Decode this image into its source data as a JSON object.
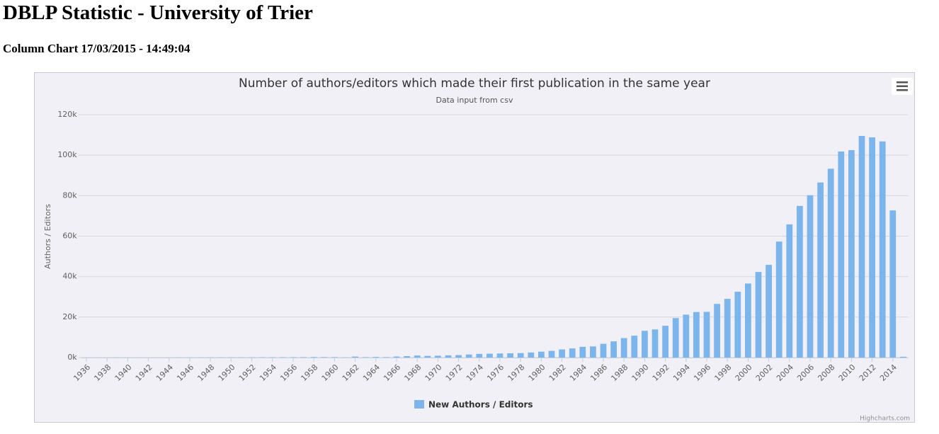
{
  "header": {
    "title": "DBLP Statistic - University of Trier",
    "subtitle": "Column Chart 17/03/2015 - 14:49:04"
  },
  "chart_data": {
    "type": "bar",
    "title": "Number of authors/editors which made their first publication in the same year",
    "subtitle": "Data input from csv",
    "y_label": "Authors / Editors",
    "credits": "Highcharts.com",
    "categories": [
      1936,
      null,
      1938,
      null,
      1940,
      null,
      1942,
      null,
      1944,
      null,
      1946,
      null,
      1948,
      null,
      1950,
      null,
      1952,
      null,
      1954,
      null,
      1956,
      null,
      1958,
      null,
      1960,
      null,
      1962,
      null,
      1964,
      null,
      1966,
      null,
      1968,
      null,
      1970,
      null,
      1972,
      null,
      1974,
      null,
      1976,
      null,
      1978,
      null,
      1980,
      null,
      1982,
      null,
      1984,
      null,
      1986,
      null,
      1988,
      null,
      1990,
      null,
      1992,
      null,
      1994,
      null,
      1996,
      null,
      1998,
      null,
      2000,
      null,
      2002,
      null,
      2004,
      null,
      2006,
      null,
      2008,
      null,
      2010,
      null,
      2012,
      null,
      2014,
      null
    ],
    "series": [
      {
        "name": "New Authors / Editors",
        "color": "#7cb5ec",
        "values": [
          20,
          10,
          20,
          30,
          20,
          10,
          10,
          20,
          30,
          40,
          50,
          60,
          80,
          90,
          100,
          100,
          120,
          130,
          150,
          160,
          180,
          200,
          250,
          220,
          200,
          100,
          500,
          200,
          300,
          200,
          500,
          700,
          1000,
          800,
          900,
          1100,
          1200,
          1500,
          1800,
          1900,
          2000,
          2100,
          2200,
          2500,
          2900,
          3300,
          4000,
          4500,
          5300,
          5500,
          6800,
          8000,
          9600,
          10800,
          13200,
          13900,
          15700,
          19500,
          21200,
          22500,
          22600,
          26500,
          29000,
          32500,
          36600,
          42300,
          45800,
          57300,
          65800,
          74900,
          80200,
          86500,
          93300,
          101800,
          102500,
          109500,
          108800,
          106800,
          72700,
          400
        ]
      }
    ],
    "ylim": [
      0,
      120000
    ],
    "yticks": [
      {
        "value": 0,
        "label": "0k"
      },
      {
        "value": 20000,
        "label": "20k"
      },
      {
        "value": 40000,
        "label": "40k"
      },
      {
        "value": 60000,
        "label": "60k"
      },
      {
        "value": 80000,
        "label": "80k"
      },
      {
        "value": 100000,
        "label": "100k"
      },
      {
        "value": 120000,
        "label": "120k"
      }
    ],
    "grid": true,
    "legend": "bottom"
  }
}
